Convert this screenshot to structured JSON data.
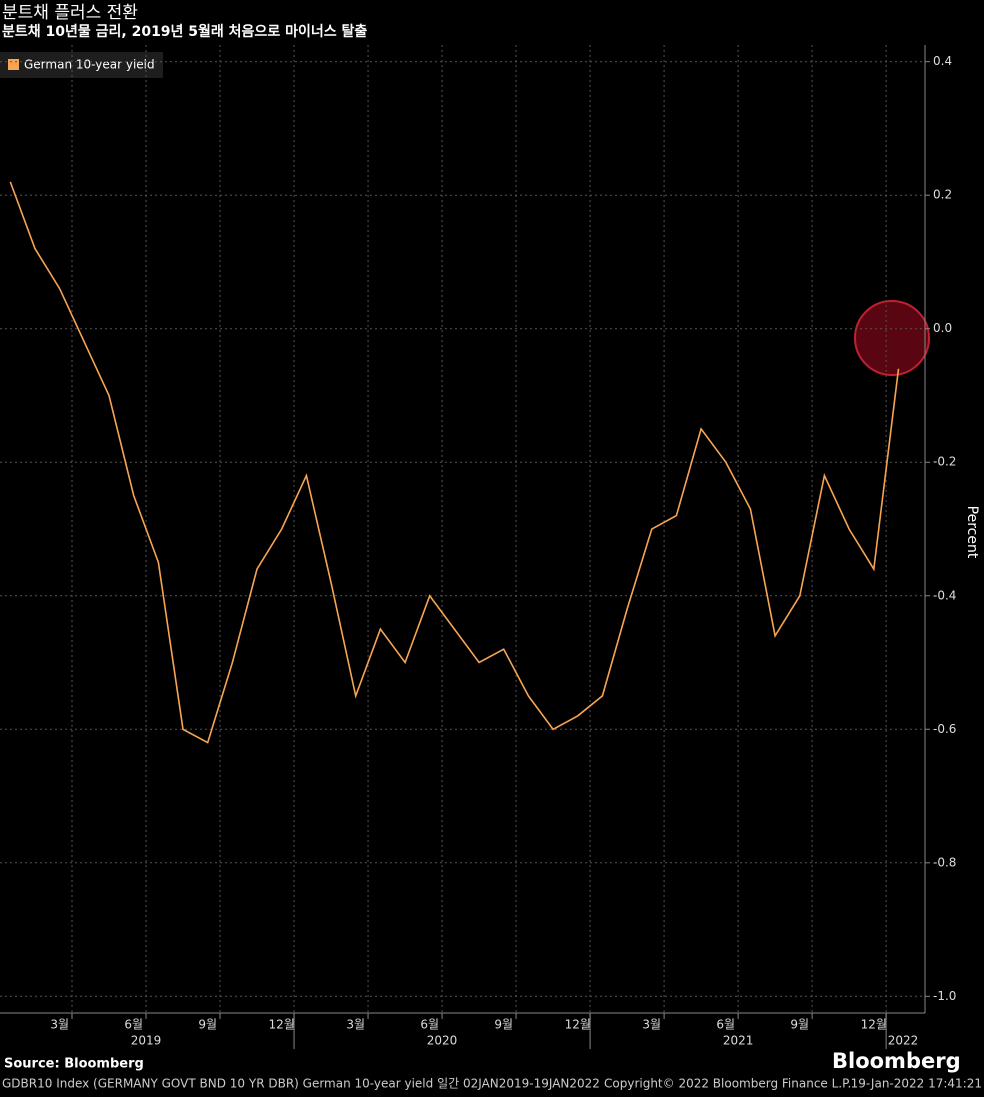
{
  "chart_data": {
    "type": "line",
    "title": "분트채 플러스 전환",
    "subtitle": "분트채 10년물 금리, 2019년 5월래 처음으로 마이너스 탈출",
    "y_label": "Percent",
    "source": "Source:  Bloomberg",
    "brand": "Bloomberg",
    "footer_left": "GDBR10 Index (GERMANY GOVT BND 10 YR DBR) German 10-year yield  일간 02JAN2019-19JAN2022",
    "footer_right": "Copyright© 2022 Bloomberg Finance L.P.",
    "timestamp": "19-Jan-2022 17:41:21",
    "x": [
      "2019-01",
      "2019-02",
      "2019-03",
      "2019-04",
      "2019-05",
      "2019-06",
      "2019-07",
      "2019-08",
      "2019-09",
      "2019-10",
      "2019-11",
      "2019-12",
      "2020-01",
      "2020-02",
      "2020-03",
      "2020-04",
      "2020-05",
      "2020-06",
      "2020-07",
      "2020-08",
      "2020-09",
      "2020-10",
      "2020-11",
      "2020-12",
      "2021-01",
      "2021-02",
      "2021-03",
      "2021-04",
      "2021-05",
      "2021-06",
      "2021-07",
      "2021-08",
      "2021-09",
      "2021-10",
      "2021-11",
      "2021-12",
      "2022-01"
    ],
    "series": [
      {
        "name": "German 10-year yield",
        "color": "#f7a552",
        "values": [
          0.22,
          0.12,
          0.06,
          -0.02,
          -0.1,
          -0.25,
          -0.35,
          -0.6,
          -0.62,
          -0.5,
          -0.36,
          -0.3,
          -0.22,
          -0.38,
          -0.55,
          -0.45,
          -0.5,
          -0.4,
          -0.45,
          -0.5,
          -0.48,
          -0.55,
          -0.6,
          -0.58,
          -0.55,
          -0.42,
          -0.3,
          -0.28,
          -0.15,
          -0.2,
          -0.27,
          -0.46,
          -0.4,
          -0.22,
          -0.3,
          -0.36,
          -0.06
        ]
      }
    ],
    "ylim": [
      -1.025,
      0.425
    ],
    "yticks": [
      0.4,
      0.2,
      {
        "value": 0,
        "label": "0.0"
      },
      -0.2,
      -0.4,
      -0.6,
      -0.8,
      {
        "value": -1,
        "label": "-1.0"
      }
    ],
    "xticks": [
      {
        "value": "2019-03",
        "label": "3월"
      },
      {
        "value": "2019-06",
        "label": "6월"
      },
      {
        "value": "2019-09",
        "label": "9월"
      },
      {
        "value": "2019-12",
        "label": "12월"
      },
      {
        "value": "2020-03",
        "label": "3월"
      },
      {
        "value": "2020-06",
        "label": "6월"
      },
      {
        "value": "2020-09",
        "label": "9월"
      },
      {
        "value": "2020-12",
        "label": "12월"
      },
      {
        "value": "2021-03",
        "label": "3월"
      },
      {
        "value": "2021-06",
        "label": "6월"
      },
      {
        "value": "2021-09",
        "label": "9월"
      },
      {
        "value": "2021-12",
        "label": "12월"
      }
    ],
    "x_years": [
      "2019",
      "2020",
      "2021",
      "2022"
    ],
    "grid": true
  }
}
